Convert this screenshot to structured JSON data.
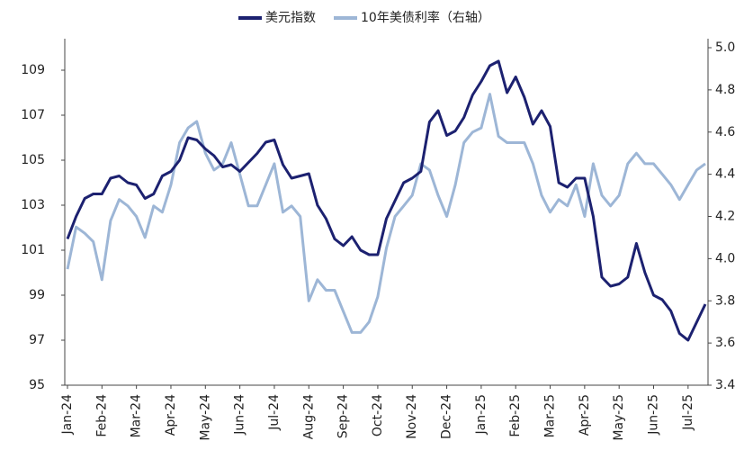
{
  "chart_data": {
    "type": "line",
    "categories": [
      "Jan-24",
      null,
      null,
      null,
      "Feb-24",
      null,
      null,
      null,
      "Mar-24",
      null,
      null,
      null,
      "Apr-24",
      null,
      null,
      null,
      "May-24",
      null,
      null,
      null,
      "Jun-24",
      null,
      null,
      null,
      "Jul-24",
      null,
      null,
      null,
      "Aug-24",
      null,
      null,
      null,
      "Sep-24",
      null,
      null,
      null,
      "Oct-24",
      null,
      null,
      null,
      "Nov-24",
      null,
      null,
      null,
      "Dec-24",
      null,
      null,
      null,
      "Jan-25",
      null,
      null,
      null,
      "Feb-25",
      null,
      null,
      null,
      "Mar-25",
      null,
      null,
      null,
      "Apr-25",
      null,
      null,
      null,
      "May-25",
      null,
      null,
      null,
      "Jun-25",
      null,
      null,
      null,
      "Jul-25",
      null,
      null
    ],
    "series": [
      {
        "name": "美元指数",
        "color": "#1c2170",
        "values": [
          101.5,
          102.5,
          103.3,
          103.5,
          103.5,
          104.2,
          104.3,
          104.0,
          103.9,
          103.3,
          103.5,
          104.3,
          104.5,
          105.0,
          106.0,
          105.9,
          105.5,
          105.2,
          104.7,
          104.8,
          104.5,
          104.9,
          105.3,
          105.8,
          105.9,
          104.8,
          104.2,
          104.3,
          104.4,
          103.0,
          102.4,
          101.5,
          101.2,
          101.6,
          101.0,
          100.8,
          100.8,
          102.4,
          103.2,
          104.0,
          104.2,
          104.5,
          106.7,
          107.2,
          106.1,
          106.3,
          106.9,
          107.9,
          108.5,
          109.2,
          109.4,
          108.0,
          108.7,
          107.8,
          106.6,
          107.2,
          106.5,
          104.0,
          103.8,
          104.2,
          104.2,
          102.5,
          99.8,
          99.4,
          99.5,
          99.8,
          101.3,
          100.0,
          99.0,
          98.8,
          98.3,
          97.3,
          97.0,
          97.8,
          98.6
        ]
      },
      {
        "name": "10年美债利率（右轴）",
        "color": "#9db6d6",
        "axis": "y2",
        "values": [
          3.95,
          4.15,
          4.12,
          4.08,
          3.9,
          4.18,
          4.28,
          4.25,
          4.2,
          4.1,
          4.25,
          4.22,
          4.35,
          4.55,
          4.62,
          4.65,
          4.5,
          4.42,
          4.45,
          4.55,
          4.4,
          4.25,
          4.25,
          4.35,
          4.45,
          4.22,
          4.25,
          4.2,
          3.8,
          3.9,
          3.85,
          3.85,
          3.75,
          3.65,
          3.65,
          3.7,
          3.82,
          4.05,
          4.2,
          4.25,
          4.3,
          4.45,
          4.42,
          4.3,
          4.2,
          4.35,
          4.55,
          4.6,
          4.62,
          4.78,
          4.58,
          4.55,
          4.55,
          4.55,
          4.45,
          4.3,
          4.22,
          4.28,
          4.25,
          4.35,
          4.2,
          4.45,
          4.3,
          4.25,
          4.3,
          4.45,
          4.5,
          4.45,
          4.45,
          4.4,
          4.35,
          4.28,
          4.35,
          4.42,
          4.45
        ]
      }
    ],
    "ylim": [
      95,
      110
    ],
    "yticks": [
      95,
      97,
      99,
      101,
      103,
      105,
      107,
      109
    ],
    "y2lim": [
      3.4,
      5.0
    ],
    "y2ticks": [
      {
        "value": 3.4,
        "label": "3.4"
      },
      {
        "value": 3.6,
        "label": "3.6"
      },
      {
        "value": 3.8,
        "label": "3.8"
      },
      {
        "value": 4.0,
        "label": "4.0"
      },
      {
        "value": 4.2,
        "label": "4.2"
      },
      {
        "value": 4.4,
        "label": "4.4"
      },
      {
        "value": 4.6,
        "label": "4.6"
      },
      {
        "value": 4.8,
        "label": "4.8"
      },
      {
        "value": 5.0,
        "label": "5.0"
      }
    ],
    "legend": "top",
    "grid": false
  }
}
